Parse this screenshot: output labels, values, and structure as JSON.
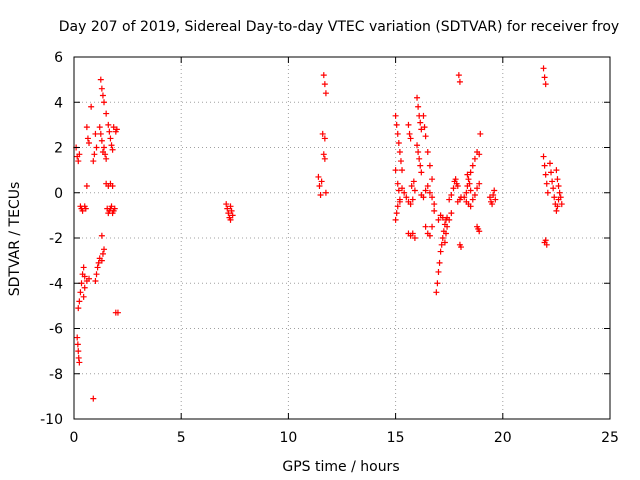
{
  "chart_data": {
    "type": "scatter",
    "title": "Day 207 of 2019, Sidereal Day-to-day VTEC variation (SDTVAR) for receiver froy",
    "xlabel": "GPS time / hours",
    "ylabel": "SDTVAR / TECUs",
    "xlim": [
      0,
      25
    ],
    "ylim": [
      -10,
      6
    ],
    "xticks": [
      0,
      5,
      10,
      15,
      20,
      25
    ],
    "yticks": [
      -10,
      -8,
      -6,
      -4,
      -2,
      0,
      2,
      4,
      6
    ],
    "xtick_labels": [
      "0",
      "5",
      "10",
      "15",
      "20",
      "25"
    ],
    "ytick_labels": [
      "-10",
      "-8",
      "-6",
      "-4",
      "-2",
      "0",
      "2",
      "4",
      "6"
    ],
    "grid": true,
    "marker": "+",
    "color": "#ff0000",
    "series": [
      {
        "name": "SDTVAR",
        "points": [
          [
            0.15,
            -6.4
          ],
          [
            0.18,
            -6.7
          ],
          [
            0.2,
            -7.0
          ],
          [
            0.22,
            -7.3
          ],
          [
            0.25,
            -7.5
          ],
          [
            0.1,
            2.0
          ],
          [
            0.15,
            1.6
          ],
          [
            0.2,
            1.4
          ],
          [
            0.25,
            1.7
          ],
          [
            0.2,
            -5.1
          ],
          [
            0.25,
            -4.8
          ],
          [
            0.3,
            -4.4
          ],
          [
            0.35,
            -4.0
          ],
          [
            0.4,
            -3.6
          ],
          [
            0.45,
            -3.3
          ],
          [
            0.5,
            -3.7
          ],
          [
            0.3,
            -0.6
          ],
          [
            0.35,
            -0.7
          ],
          [
            0.4,
            -0.8
          ],
          [
            0.5,
            -0.6
          ],
          [
            0.55,
            -0.7
          ],
          [
            0.45,
            -4.6
          ],
          [
            0.5,
            -4.2
          ],
          [
            0.6,
            -3.9
          ],
          [
            0.7,
            -3.8
          ],
          [
            0.6,
            2.9
          ],
          [
            0.65,
            2.4
          ],
          [
            0.7,
            2.2
          ],
          [
            0.6,
            0.3
          ],
          [
            0.8,
            3.8
          ],
          [
            0.9,
            1.4
          ],
          [
            0.95,
            1.7
          ],
          [
            1.0,
            2.6
          ],
          [
            1.05,
            2.0
          ],
          [
            0.9,
            -9.1
          ],
          [
            1.0,
            -3.9
          ],
          [
            1.05,
            -3.6
          ],
          [
            1.1,
            -3.3
          ],
          [
            1.15,
            -3.1
          ],
          [
            1.2,
            -2.9
          ],
          [
            1.3,
            -3.0
          ],
          [
            1.35,
            -2.7
          ],
          [
            1.4,
            -2.5
          ],
          [
            1.3,
            -1.9
          ],
          [
            1.25,
            5.0
          ],
          [
            1.3,
            4.6
          ],
          [
            1.35,
            4.3
          ],
          [
            1.4,
            4.0
          ],
          [
            1.5,
            3.5
          ],
          [
            1.2,
            2.9
          ],
          [
            1.25,
            2.6
          ],
          [
            1.3,
            2.3
          ],
          [
            1.4,
            2.0
          ],
          [
            1.35,
            1.8
          ],
          [
            1.45,
            1.7
          ],
          [
            1.5,
            1.5
          ],
          [
            1.6,
            3.0
          ],
          [
            1.65,
            2.7
          ],
          [
            1.7,
            2.4
          ],
          [
            1.75,
            2.1
          ],
          [
            1.8,
            1.9
          ],
          [
            1.5,
            0.4
          ],
          [
            1.6,
            0.3
          ],
          [
            1.7,
            0.4
          ],
          [
            1.8,
            0.3
          ],
          [
            1.55,
            -0.7
          ],
          [
            1.6,
            -0.9
          ],
          [
            1.65,
            -0.8
          ],
          [
            1.7,
            -0.7
          ],
          [
            1.75,
            -0.6
          ],
          [
            1.8,
            -0.9
          ],
          [
            1.85,
            -0.8
          ],
          [
            1.9,
            -0.7
          ],
          [
            1.85,
            2.9
          ],
          [
            1.95,
            2.7
          ],
          [
            2.0,
            2.8
          ],
          [
            2.05,
            -5.3
          ],
          [
            1.95,
            -5.3
          ],
          [
            7.1,
            -0.5
          ],
          [
            7.15,
            -0.7
          ],
          [
            7.2,
            -0.9
          ],
          [
            7.25,
            -1.1
          ],
          [
            7.3,
            -1.2
          ],
          [
            7.35,
            -0.8
          ],
          [
            7.4,
            -1.0
          ],
          [
            7.3,
            -0.6
          ],
          [
            11.4,
            0.7
          ],
          [
            11.45,
            0.3
          ],
          [
            11.5,
            -0.1
          ],
          [
            11.55,
            0.5
          ],
          [
            11.65,
            5.2
          ],
          [
            11.7,
            4.8
          ],
          [
            11.75,
            4.4
          ],
          [
            11.6,
            2.6
          ],
          [
            11.7,
            2.4
          ],
          [
            11.65,
            1.7
          ],
          [
            11.7,
            1.5
          ],
          [
            11.75,
            0.0
          ],
          [
            15.0,
            3.4
          ],
          [
            15.05,
            3.0
          ],
          [
            15.1,
            2.6
          ],
          [
            15.15,
            2.2
          ],
          [
            15.2,
            1.8
          ],
          [
            15.25,
            1.4
          ],
          [
            15.3,
            1.0
          ],
          [
            15.0,
            1.0
          ],
          [
            15.1,
            0.4
          ],
          [
            15.15,
            0.1
          ],
          [
            15.2,
            -0.3
          ],
          [
            15.0,
            -1.2
          ],
          [
            15.05,
            -0.9
          ],
          [
            15.1,
            -0.6
          ],
          [
            15.2,
            -0.4
          ],
          [
            15.3,
            0.2
          ],
          [
            15.4,
            0.0
          ],
          [
            15.5,
            -0.2
          ],
          [
            15.6,
            -0.4
          ],
          [
            15.7,
            -0.5
          ],
          [
            15.8,
            -0.3
          ],
          [
            15.6,
            3.0
          ],
          [
            15.65,
            2.6
          ],
          [
            15.7,
            2.4
          ],
          [
            15.6,
            -1.8
          ],
          [
            15.7,
            -1.9
          ],
          [
            15.8,
            -1.8
          ],
          [
            15.9,
            -2.0
          ],
          [
            15.75,
            0.3
          ],
          [
            15.85,
            0.5
          ],
          [
            15.9,
            0.1
          ],
          [
            16.0,
            4.2
          ],
          [
            16.05,
            3.8
          ],
          [
            16.1,
            3.4
          ],
          [
            16.15,
            3.1
          ],
          [
            16.2,
            2.8
          ],
          [
            16.0,
            2.1
          ],
          [
            16.05,
            1.8
          ],
          [
            16.1,
            1.5
          ],
          [
            16.15,
            1.2
          ],
          [
            16.2,
            0.9
          ],
          [
            16.3,
            3.4
          ],
          [
            16.35,
            2.9
          ],
          [
            16.4,
            2.5
          ],
          [
            16.5,
            1.8
          ],
          [
            16.6,
            1.2
          ],
          [
            16.7,
            0.6
          ],
          [
            16.2,
            -0.1
          ],
          [
            16.3,
            -0.2
          ],
          [
            16.4,
            0.1
          ],
          [
            16.5,
            0.3
          ],
          [
            16.6,
            0.0
          ],
          [
            16.7,
            -0.2
          ],
          [
            16.8,
            -0.5
          ],
          [
            16.4,
            -1.5
          ],
          [
            16.5,
            -1.8
          ],
          [
            16.6,
            -1.9
          ],
          [
            16.7,
            -1.5
          ],
          [
            16.8,
            -0.8
          ],
          [
            16.9,
            -4.4
          ],
          [
            16.95,
            -4.0
          ],
          [
            17.0,
            -3.5
          ],
          [
            17.05,
            -3.1
          ],
          [
            17.1,
            -2.6
          ],
          [
            17.15,
            -2.3
          ],
          [
            17.2,
            -2.0
          ],
          [
            17.25,
            -1.7
          ],
          [
            17.3,
            -1.4
          ],
          [
            17.35,
            -1.2
          ],
          [
            17.4,
            -1.1
          ],
          [
            17.0,
            -1.2
          ],
          [
            17.1,
            -1.0
          ],
          [
            17.2,
            -1.1
          ],
          [
            17.3,
            -2.2
          ],
          [
            17.35,
            -1.8
          ],
          [
            17.4,
            -1.5
          ],
          [
            17.5,
            -1.2
          ],
          [
            17.6,
            -0.9
          ],
          [
            17.5,
            -0.3
          ],
          [
            17.6,
            -0.1
          ],
          [
            17.7,
            0.2
          ],
          [
            17.75,
            0.5
          ],
          [
            17.8,
            0.6
          ],
          [
            17.85,
            0.4
          ],
          [
            17.9,
            0.3
          ],
          [
            17.95,
            5.2
          ],
          [
            18.0,
            4.9
          ],
          [
            17.9,
            -0.4
          ],
          [
            18.0,
            -0.3
          ],
          [
            18.05,
            -0.2
          ],
          [
            18.0,
            -2.3
          ],
          [
            18.05,
            -2.4
          ],
          [
            18.2,
            -0.2
          ],
          [
            18.3,
            0.0
          ],
          [
            18.35,
            0.3
          ],
          [
            18.4,
            0.6
          ],
          [
            18.5,
            0.9
          ],
          [
            18.6,
            1.2
          ],
          [
            18.7,
            1.5
          ],
          [
            18.8,
            1.8
          ],
          [
            18.3,
            -0.4
          ],
          [
            18.4,
            -0.5
          ],
          [
            18.5,
            -0.6
          ],
          [
            18.6,
            -0.3
          ],
          [
            18.7,
            -0.1
          ],
          [
            18.8,
            0.2
          ],
          [
            18.9,
            0.4
          ],
          [
            18.35,
            0.8
          ],
          [
            18.45,
            0.4
          ],
          [
            18.5,
            0.1
          ],
          [
            18.8,
            -1.5
          ],
          [
            18.85,
            -1.6
          ],
          [
            18.9,
            -1.7
          ],
          [
            18.95,
            2.6
          ],
          [
            18.9,
            1.7
          ],
          [
            19.4,
            -0.2
          ],
          [
            19.45,
            -0.4
          ],
          [
            19.5,
            -0.5
          ],
          [
            19.55,
            -0.1
          ],
          [
            19.6,
            0.1
          ],
          [
            19.65,
            -0.3
          ],
          [
            21.9,
            5.5
          ],
          [
            21.95,
            5.1
          ],
          [
            22.0,
            4.8
          ],
          [
            21.9,
            1.6
          ],
          [
            21.95,
            1.2
          ],
          [
            22.0,
            0.8
          ],
          [
            22.05,
            0.4
          ],
          [
            22.1,
            0.0
          ],
          [
            22.0,
            -2.1
          ],
          [
            22.05,
            -2.3
          ],
          [
            21.95,
            -2.2
          ],
          [
            22.2,
            1.3
          ],
          [
            22.25,
            0.9
          ],
          [
            22.3,
            0.5
          ],
          [
            22.35,
            0.2
          ],
          [
            22.4,
            -0.2
          ],
          [
            22.45,
            -0.5
          ],
          [
            22.5,
            -0.8
          ],
          [
            22.55,
            -0.6
          ],
          [
            22.6,
            -0.3
          ],
          [
            22.5,
            1.0
          ],
          [
            22.55,
            0.6
          ],
          [
            22.6,
            0.3
          ],
          [
            22.65,
            0.0
          ],
          [
            22.7,
            -0.2
          ],
          [
            22.75,
            -0.5
          ]
        ]
      }
    ]
  }
}
